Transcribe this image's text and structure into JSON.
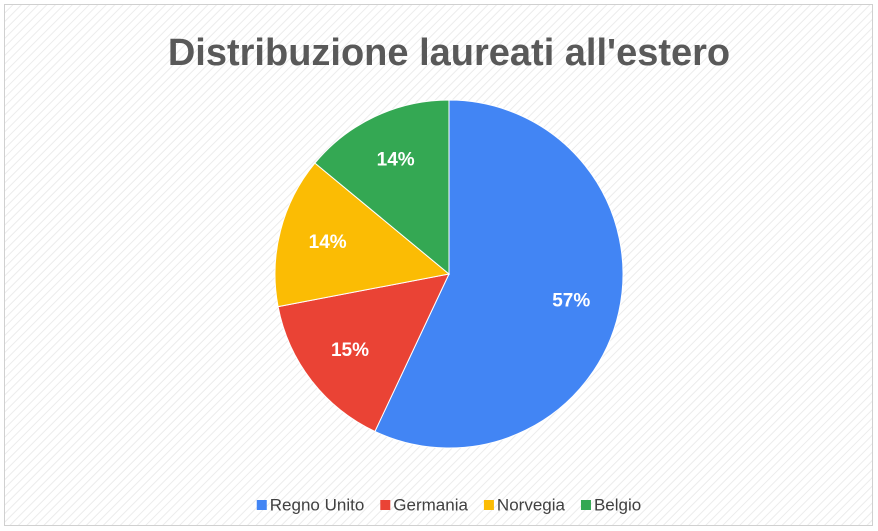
{
  "chart_data": {
    "type": "pie",
    "title": "Distribuzione laureati all'estero",
    "categories": [
      "Regno Unito",
      "Germania",
      "Norvegia",
      "Belgio"
    ],
    "values": [
      57,
      15,
      14,
      14
    ],
    "value_labels": [
      "57%",
      "15%",
      "14%",
      "14%"
    ],
    "colors": [
      "#4285f4",
      "#ea4335",
      "#fbbc04",
      "#34a853"
    ],
    "legend": "bottom"
  }
}
